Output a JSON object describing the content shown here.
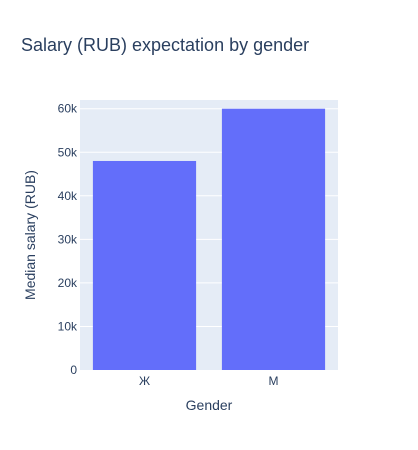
{
  "chart_data": {
    "type": "bar",
    "title": "Salary (RUB) expectation by gender",
    "xlabel": "Gender",
    "ylabel": "Median salary (RUB)",
    "categories": [
      "Ж",
      "М"
    ],
    "values": [
      48000,
      60000
    ],
    "ylim": [
      0,
      62000
    ],
    "yticks": [
      {
        "value": 0,
        "label": "0"
      },
      {
        "value": 10000,
        "label": "10k"
      },
      {
        "value": 20000,
        "label": "20k"
      },
      {
        "value": 30000,
        "label": "30k"
      },
      {
        "value": 40000,
        "label": "40k"
      },
      {
        "value": 50000,
        "label": "50k"
      },
      {
        "value": 60000,
        "label": "60k"
      }
    ],
    "grid": true,
    "legend": "none",
    "colors": {
      "bar": "#636efa",
      "plot_background": "#e5ecf6",
      "grid": "#ffffff",
      "text": "#2a3f5f"
    }
  }
}
